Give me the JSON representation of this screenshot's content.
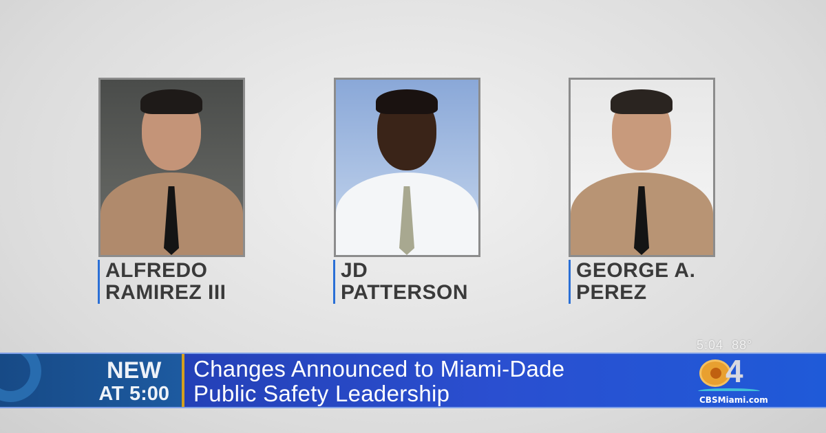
{
  "people": [
    {
      "name_line1": "ALFREDO",
      "name_line2": "RAMIREZ III"
    },
    {
      "name_line1": "JD",
      "name_line2": "PATTERSON"
    },
    {
      "name_line1": "GEORGE A.",
      "name_line2": "PEREZ"
    }
  ],
  "overlay": {
    "time": "5:04",
    "temperature": "88°"
  },
  "banner": {
    "tag_line1": "NEW",
    "tag_line2": "AT 5:00",
    "headline_line1": "Changes Announced to Miami-Dade",
    "headline_line2": "Public Safety Leadership",
    "logo_text": "CBS4",
    "website": "CBSMiami.com",
    "colors": {
      "banner_blue": "#2a4fd0",
      "tag_blue": "#1d5aa0",
      "divider_gold": "#d4a020",
      "name_bar": "#2a6fd6"
    }
  }
}
